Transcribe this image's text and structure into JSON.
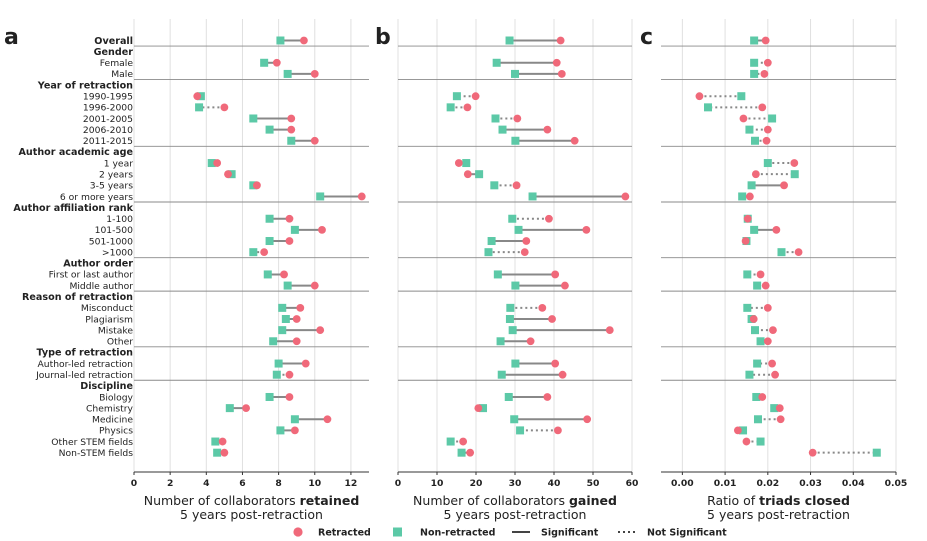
{
  "legend": {
    "retracted": "Retracted",
    "non_retracted": "Non-retracted",
    "significant": "Significant",
    "not_significant": "Not Significant"
  },
  "colors": {
    "retracted": "#f0697a",
    "non_retracted": "#5cc9a7",
    "line": "#888888",
    "separator": "#8a8a8a",
    "grid": "#e0e0e0"
  },
  "rows": [
    {
      "label": "Overall",
      "group": true
    },
    {
      "label": "Gender",
      "group": true,
      "header": true
    },
    {
      "label": "Female"
    },
    {
      "label": "Male"
    },
    {
      "label": "Year of retraction",
      "group": true,
      "header": true
    },
    {
      "label": "1990-1995"
    },
    {
      "label": "1996-2000"
    },
    {
      "label": "2001-2005"
    },
    {
      "label": "2006-2010"
    },
    {
      "label": "2011-2015"
    },
    {
      "label": "Author academic age",
      "group": true,
      "header": true
    },
    {
      "label": "1 year"
    },
    {
      "label": "2 years"
    },
    {
      "label": "3-5 years"
    },
    {
      "label": "6 or more years"
    },
    {
      "label": "Author affiliation rank",
      "group": true,
      "header": true
    },
    {
      "label": "1-100"
    },
    {
      "label": "101-500"
    },
    {
      "label": "501-1000"
    },
    {
      "label": ">1000"
    },
    {
      "label": "Author order",
      "group": true,
      "header": true
    },
    {
      "label": "First or last author"
    },
    {
      "label": "Middle author"
    },
    {
      "label": "Reason of retraction",
      "group": true,
      "header": true
    },
    {
      "label": "Misconduct"
    },
    {
      "label": "Plagiarism"
    },
    {
      "label": "Mistake"
    },
    {
      "label": "Other"
    },
    {
      "label": "Type of retraction",
      "group": true,
      "header": true
    },
    {
      "label": "Author-led retraction"
    },
    {
      "label": "Journal-led retraction"
    },
    {
      "label": "Discipline",
      "group": true,
      "header": true
    },
    {
      "label": "Biology"
    },
    {
      "label": "Chemistry"
    },
    {
      "label": "Medicine"
    },
    {
      "label": "Physics"
    },
    {
      "label": "Other STEM fields"
    },
    {
      "label": "Non-STEM fields"
    }
  ],
  "chart_data": [
    {
      "type": "dumbbell",
      "panel": "a",
      "xlabel_plain": "Number of collaborators ",
      "xlabel_bold": "retained",
      "xlabel_line2": "5 years post-retraction",
      "xlim": [
        0,
        13
      ],
      "ticks": [
        0,
        2,
        4,
        6,
        8,
        10,
        12
      ],
      "tick_labels": [
        "0",
        "2",
        "4",
        "6",
        "8",
        "10",
        "12"
      ],
      "data": [
        {
          "row": "Overall",
          "retracted": 9.4,
          "non_retracted": 8.1,
          "significant": true
        },
        {
          "row": "Female",
          "retracted": 7.9,
          "non_retracted": 7.2,
          "significant": true
        },
        {
          "row": "Male",
          "retracted": 10.0,
          "non_retracted": 8.5,
          "significant": true
        },
        {
          "row": "1990-1995",
          "retracted": 3.5,
          "non_retracted": 3.7,
          "significant": true
        },
        {
          "row": "1996-2000",
          "retracted": 5.0,
          "non_retracted": 3.6,
          "significant": false
        },
        {
          "row": "2001-2005",
          "retracted": 8.7,
          "non_retracted": 6.6,
          "significant": true
        },
        {
          "row": "2006-2010",
          "retracted": 8.7,
          "non_retracted": 7.5,
          "significant": true
        },
        {
          "row": "2011-2015",
          "retracted": 10.0,
          "non_retracted": 8.7,
          "significant": true
        },
        {
          "row": "1 year",
          "retracted": 4.6,
          "non_retracted": 4.3,
          "significant": true
        },
        {
          "row": "2 years",
          "retracted": 5.2,
          "non_retracted": 5.4,
          "significant": true
        },
        {
          "row": "3-5 years",
          "retracted": 6.8,
          "non_retracted": 6.6,
          "significant": true
        },
        {
          "row": "6 or more years",
          "retracted": 12.6,
          "non_retracted": 10.3,
          "significant": true
        },
        {
          "row": "1-100",
          "retracted": 8.6,
          "non_retracted": 7.5,
          "significant": true
        },
        {
          "row": "101-500",
          "retracted": 10.4,
          "non_retracted": 8.9,
          "significant": true
        },
        {
          "row": "501-1000",
          "retracted": 8.6,
          "non_retracted": 7.5,
          "significant": true
        },
        {
          "row": ">1000",
          "retracted": 7.2,
          "non_retracted": 6.6,
          "significant": false
        },
        {
          "row": "First or last author",
          "retracted": 8.3,
          "non_retracted": 7.4,
          "significant": true
        },
        {
          "row": "Middle author",
          "retracted": 10.0,
          "non_retracted": 8.5,
          "significant": true
        },
        {
          "row": "Misconduct",
          "retracted": 9.2,
          "non_retracted": 8.2,
          "significant": true
        },
        {
          "row": "Plagiarism",
          "retracted": 9.0,
          "non_retracted": 8.4,
          "significant": true
        },
        {
          "row": "Mistake",
          "retracted": 10.3,
          "non_retracted": 8.2,
          "significant": true
        },
        {
          "row": "Other",
          "retracted": 9.0,
          "non_retracted": 7.7,
          "significant": true
        },
        {
          "row": "Author-led retraction",
          "retracted": 9.5,
          "non_retracted": 8.0,
          "significant": true
        },
        {
          "row": "Journal-led retraction",
          "retracted": 8.6,
          "non_retracted": 7.9,
          "significant": false
        },
        {
          "row": "Biology",
          "retracted": 8.6,
          "non_retracted": 7.5,
          "significant": true
        },
        {
          "row": "Chemistry",
          "retracted": 6.2,
          "non_retracted": 5.3,
          "significant": true
        },
        {
          "row": "Medicine",
          "retracted": 10.7,
          "non_retracted": 8.9,
          "significant": true
        },
        {
          "row": "Physics",
          "retracted": 8.9,
          "non_retracted": 8.1,
          "significant": true
        },
        {
          "row": "Other STEM fields",
          "retracted": 4.9,
          "non_retracted": 4.5,
          "significant": true
        },
        {
          "row": "Non-STEM fields",
          "retracted": 5.0,
          "non_retracted": 4.6,
          "significant": true
        }
      ]
    },
    {
      "type": "dumbbell",
      "panel": "b",
      "xlabel_plain": "Number of collaborators ",
      "xlabel_bold": "gained",
      "xlabel_line2": "5 years post-retraction",
      "xlim": [
        0,
        60
      ],
      "ticks": [
        0,
        10,
        20,
        30,
        40,
        50,
        60
      ],
      "tick_labels": [
        "0",
        "10",
        "20",
        "30",
        "40",
        "50",
        "60"
      ],
      "data": [
        {
          "row": "Overall",
          "retracted": 41.7,
          "non_retracted": 28.6,
          "significant": true
        },
        {
          "row": "Female",
          "retracted": 40.7,
          "non_retracted": 25.3,
          "significant": true
        },
        {
          "row": "Male",
          "retracted": 42.0,
          "non_retracted": 30.0,
          "significant": true
        },
        {
          "row": "1990-1995",
          "retracted": 19.9,
          "non_retracted": 15.1,
          "significant": false
        },
        {
          "row": "1996-2000",
          "retracted": 17.8,
          "non_retracted": 13.5,
          "significant": false
        },
        {
          "row": "2001-2005",
          "retracted": 30.6,
          "non_retracted": 25.0,
          "significant": false
        },
        {
          "row": "2006-2010",
          "retracted": 38.3,
          "non_retracted": 26.8,
          "significant": true
        },
        {
          "row": "2011-2015",
          "retracted": 45.3,
          "non_retracted": 30.1,
          "significant": true
        },
        {
          "row": "1 year",
          "retracted": 15.6,
          "non_retracted": 17.5,
          "significant": true
        },
        {
          "row": "2 years",
          "retracted": 17.9,
          "non_retracted": 20.8,
          "significant": true
        },
        {
          "row": "3-5 years",
          "retracted": 30.4,
          "non_retracted": 24.7,
          "significant": false
        },
        {
          "row": "6 or more years",
          "retracted": 58.3,
          "non_retracted": 34.5,
          "significant": true
        },
        {
          "row": "1-100",
          "retracted": 38.7,
          "non_retracted": 29.3,
          "significant": false
        },
        {
          "row": "101-500",
          "retracted": 48.3,
          "non_retracted": 30.9,
          "significant": true
        },
        {
          "row": "501-1000",
          "retracted": 32.9,
          "non_retracted": 24.0,
          "significant": true
        },
        {
          "row": ">1000",
          "retracted": 32.5,
          "non_retracted": 23.2,
          "significant": false
        },
        {
          "row": "First or last author",
          "retracted": 40.3,
          "non_retracted": 25.6,
          "significant": true
        },
        {
          "row": "Middle author",
          "retracted": 42.8,
          "non_retracted": 30.1,
          "significant": true
        },
        {
          "row": "Misconduct",
          "retracted": 37.0,
          "non_retracted": 28.8,
          "significant": false
        },
        {
          "row": "Plagiarism",
          "retracted": 39.5,
          "non_retracted": 28.7,
          "significant": true
        },
        {
          "row": "Mistake",
          "retracted": 54.3,
          "non_retracted": 29.4,
          "significant": true
        },
        {
          "row": "Other",
          "retracted": 34.0,
          "non_retracted": 26.3,
          "significant": true
        },
        {
          "row": "Author-led retraction",
          "retracted": 40.3,
          "non_retracted": 30.1,
          "significant": true
        },
        {
          "row": "Journal-led retraction",
          "retracted": 42.2,
          "non_retracted": 26.6,
          "significant": true
        },
        {
          "row": "Biology",
          "retracted": 38.3,
          "non_retracted": 28.4,
          "significant": true
        },
        {
          "row": "Chemistry",
          "retracted": 20.6,
          "non_retracted": 21.8,
          "significant": true
        },
        {
          "row": "Medicine",
          "retracted": 48.5,
          "non_retracted": 29.8,
          "significant": true
        },
        {
          "row": "Physics",
          "retracted": 41.0,
          "non_retracted": 31.3,
          "significant": false
        },
        {
          "row": "Other STEM fields",
          "retracted": 16.7,
          "non_retracted": 13.5,
          "significant": false
        },
        {
          "row": "Non-STEM fields",
          "retracted": 18.5,
          "non_retracted": 16.3,
          "significant": true
        }
      ]
    },
    {
      "type": "dumbbell",
      "panel": "c",
      "xlabel_plain": "Ratio of ",
      "xlabel_bold": "triads closed",
      "xlabel_line2": "5 years post-retraction",
      "xlim": [
        -0.005,
        0.05
      ],
      "ticks": [
        0,
        0.01,
        0.02,
        0.03,
        0.04,
        0.05
      ],
      "tick_labels": [
        "0.00",
        "0.01",
        "0.02",
        "0.03",
        "0.04",
        "0.05"
      ],
      "data": [
        {
          "row": "Overall",
          "retracted": 0.0195,
          "non_retracted": 0.0168,
          "significant": true
        },
        {
          "row": "Female",
          "retracted": 0.02,
          "non_retracted": 0.0168,
          "significant": false
        },
        {
          "row": "Male",
          "retracted": 0.0192,
          "non_retracted": 0.0168,
          "significant": false
        },
        {
          "row": "1990-1995",
          "retracted": 0.004,
          "non_retracted": 0.0138,
          "significant": false
        },
        {
          "row": "1996-2000",
          "retracted": 0.0187,
          "non_retracted": 0.006,
          "significant": false
        },
        {
          "row": "2001-2005",
          "retracted": 0.0143,
          "non_retracted": 0.021,
          "significant": false
        },
        {
          "row": "2006-2010",
          "retracted": 0.02,
          "non_retracted": 0.0157,
          "significant": false
        },
        {
          "row": "2011-2015",
          "retracted": 0.0197,
          "non_retracted": 0.017,
          "significant": false
        },
        {
          "row": "1 year",
          "retracted": 0.0262,
          "non_retracted": 0.02,
          "significant": false
        },
        {
          "row": "2 years",
          "retracted": 0.0172,
          "non_retracted": 0.0263,
          "significant": false
        },
        {
          "row": "3-5 years",
          "retracted": 0.0238,
          "non_retracted": 0.0162,
          "significant": true
        },
        {
          "row": "6 or more years",
          "retracted": 0.0158,
          "non_retracted": 0.014,
          "significant": true
        },
        {
          "row": "1-100",
          "retracted": 0.0153,
          "non_retracted": 0.0153,
          "significant": true
        },
        {
          "row": "101-500",
          "retracted": 0.022,
          "non_retracted": 0.0168,
          "significant": true
        },
        {
          "row": "501-1000",
          "retracted": 0.0148,
          "non_retracted": 0.015,
          "significant": true
        },
        {
          "row": ">1000",
          "retracted": 0.0272,
          "non_retracted": 0.0232,
          "significant": false
        },
        {
          "row": "First or last author",
          "retracted": 0.0183,
          "non_retracted": 0.0152,
          "significant": false
        },
        {
          "row": "Middle author",
          "retracted": 0.0195,
          "non_retracted": 0.0175,
          "significant": false
        },
        {
          "row": "Misconduct",
          "retracted": 0.02,
          "non_retracted": 0.0152,
          "significant": false
        },
        {
          "row": "Plagiarism",
          "retracted": 0.0167,
          "non_retracted": 0.0162,
          "significant": true
        },
        {
          "row": "Mistake",
          "retracted": 0.0212,
          "non_retracted": 0.017,
          "significant": false
        },
        {
          "row": "Other",
          "retracted": 0.02,
          "non_retracted": 0.0183,
          "significant": true
        },
        {
          "row": "Author-led retraction",
          "retracted": 0.021,
          "non_retracted": 0.0175,
          "significant": false
        },
        {
          "row": "Journal-led retraction",
          "retracted": 0.0217,
          "non_retracted": 0.0157,
          "significant": false
        },
        {
          "row": "Biology",
          "retracted": 0.0187,
          "non_retracted": 0.0173,
          "significant": true
        },
        {
          "row": "Chemistry",
          "retracted": 0.0228,
          "non_retracted": 0.0215,
          "significant": true
        },
        {
          "row": "Medicine",
          "retracted": 0.023,
          "non_retracted": 0.0177,
          "significant": false
        },
        {
          "row": "Physics",
          "retracted": 0.013,
          "non_retracted": 0.0142,
          "significant": true
        },
        {
          "row": "Other STEM fields",
          "retracted": 0.015,
          "non_retracted": 0.0183,
          "significant": false
        },
        {
          "row": "Non-STEM fields",
          "retracted": 0.0305,
          "non_retracted": 0.0455,
          "significant": false
        }
      ]
    }
  ]
}
